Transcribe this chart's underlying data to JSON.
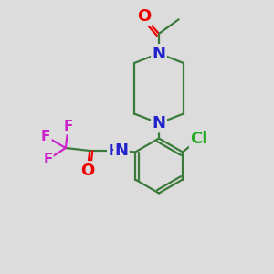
{
  "bg_color": "#dcdcdc",
  "bond_color": "#3a7a3a",
  "bond_width": 1.6,
  "atom_colors": {
    "O": "#ee0000",
    "N": "#2222cc",
    "F": "#cc22cc",
    "Cl": "#22aa22",
    "C": "#3a7a3a"
  },
  "xlim": [
    0,
    10
  ],
  "ylim": [
    0,
    10
  ],
  "figsize": [
    3.0,
    3.0
  ],
  "dpi": 100
}
